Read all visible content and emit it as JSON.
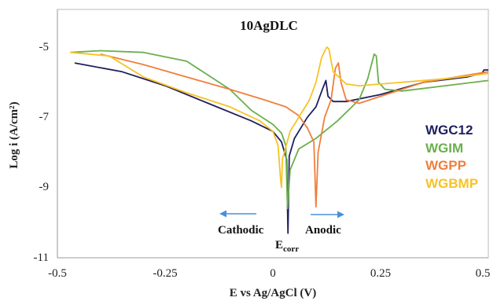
{
  "chart_data": {
    "type": "line",
    "title": "10AgDLC",
    "xlabel": "E vs Ag/AgCl (V)",
    "ylabel": "Log i (A/cm²)",
    "xlim": [
      -0.5,
      0.5
    ],
    "ylim": [
      -11,
      -4.2
    ],
    "x_ticks": [
      "-0.5",
      "-0.25",
      "0",
      "0.25",
      "0.5"
    ],
    "y_ticks": [
      "-5",
      "-7",
      "-9",
      "-11"
    ],
    "legend_position": "right",
    "series": [
      {
        "name": "WGC12",
        "color": "#1f1f5e",
        "points": [
          [
            -0.46,
            -5.45
          ],
          [
            -0.35,
            -5.7
          ],
          [
            -0.25,
            -6.1
          ],
          [
            -0.15,
            -6.6
          ],
          [
            -0.05,
            -7.1
          ],
          [
            0.0,
            -7.4
          ],
          [
            0.02,
            -7.7
          ],
          [
            0.032,
            -8.2
          ],
          [
            0.035,
            -10.3
          ],
          [
            0.038,
            -8.1
          ],
          [
            0.05,
            -7.6
          ],
          [
            0.08,
            -7.0
          ],
          [
            0.1,
            -6.7
          ],
          [
            0.115,
            -6.2
          ],
          [
            0.123,
            -5.95
          ],
          [
            0.128,
            -6.4
          ],
          [
            0.14,
            -6.55
          ],
          [
            0.17,
            -6.55
          ],
          [
            0.25,
            -6.35
          ],
          [
            0.35,
            -6.0
          ],
          [
            0.45,
            -5.85
          ],
          [
            0.485,
            -5.75
          ],
          [
            0.49,
            -5.65
          ],
          [
            0.5,
            -5.65
          ]
        ]
      },
      {
        "name": "WGIM",
        "color": "#6ab04c",
        "points": [
          [
            -0.47,
            -5.15
          ],
          [
            -0.4,
            -5.1
          ],
          [
            -0.3,
            -5.15
          ],
          [
            -0.2,
            -5.4
          ],
          [
            -0.1,
            -6.2
          ],
          [
            -0.05,
            -6.8
          ],
          [
            0.0,
            -7.2
          ],
          [
            0.02,
            -7.45
          ],
          [
            0.03,
            -7.8
          ],
          [
            0.034,
            -9.6
          ],
          [
            0.04,
            -8.5
          ],
          [
            0.06,
            -7.9
          ],
          [
            0.1,
            -7.6
          ],
          [
            0.15,
            -7.1
          ],
          [
            0.2,
            -6.5
          ],
          [
            0.22,
            -5.9
          ],
          [
            0.235,
            -5.2
          ],
          [
            0.24,
            -5.25
          ],
          [
            0.245,
            -6.0
          ],
          [
            0.26,
            -6.2
          ],
          [
            0.3,
            -6.25
          ],
          [
            0.4,
            -6.1
          ],
          [
            0.5,
            -5.95
          ]
        ]
      },
      {
        "name": "WGPP",
        "color": "#f07f3c",
        "points": [
          [
            -0.4,
            -5.2
          ],
          [
            -0.3,
            -5.5
          ],
          [
            -0.2,
            -5.85
          ],
          [
            -0.1,
            -6.2
          ],
          [
            -0.02,
            -6.5
          ],
          [
            0.03,
            -6.7
          ],
          [
            0.06,
            -6.95
          ],
          [
            0.08,
            -7.3
          ],
          [
            0.095,
            -7.7
          ],
          [
            0.1,
            -9.55
          ],
          [
            0.105,
            -8.0
          ],
          [
            0.12,
            -7.0
          ],
          [
            0.135,
            -6.5
          ],
          [
            0.145,
            -5.6
          ],
          [
            0.152,
            -5.45
          ],
          [
            0.158,
            -6.0
          ],
          [
            0.17,
            -6.5
          ],
          [
            0.2,
            -6.6
          ],
          [
            0.25,
            -6.4
          ],
          [
            0.35,
            -6.0
          ],
          [
            0.5,
            -5.7
          ]
        ]
      },
      {
        "name": "WGBMP",
        "color": "#f7c325",
        "points": [
          [
            -0.47,
            -5.15
          ],
          [
            -0.38,
            -5.25
          ],
          [
            -0.3,
            -5.85
          ],
          [
            -0.2,
            -6.3
          ],
          [
            -0.1,
            -6.7
          ],
          [
            -0.03,
            -7.1
          ],
          [
            0.0,
            -7.4
          ],
          [
            0.012,
            -7.8
          ],
          [
            0.018,
            -8.8
          ],
          [
            0.02,
            -9.0
          ],
          [
            0.022,
            -8.2
          ],
          [
            0.04,
            -7.4
          ],
          [
            0.06,
            -7.0
          ],
          [
            0.085,
            -6.5
          ],
          [
            0.1,
            -6.0
          ],
          [
            0.113,
            -5.3
          ],
          [
            0.125,
            -5.0
          ],
          [
            0.13,
            -5.05
          ],
          [
            0.14,
            -5.7
          ],
          [
            0.17,
            -6.05
          ],
          [
            0.2,
            -6.1
          ],
          [
            0.3,
            -6.0
          ],
          [
            0.4,
            -5.9
          ],
          [
            0.5,
            -5.75
          ]
        ]
      }
    ],
    "annotations": {
      "cathodic": "Cathodic",
      "anodic": "Anodic",
      "ecorr_main": "E",
      "ecorr_sub": "corr"
    }
  }
}
